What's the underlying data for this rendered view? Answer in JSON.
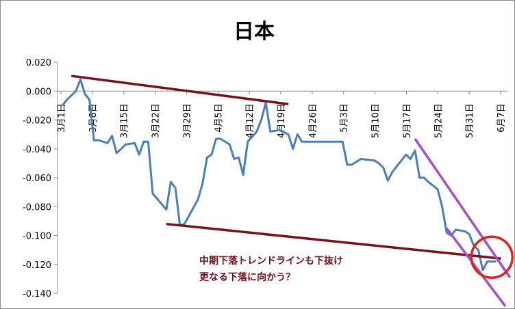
{
  "chart_data": {
    "type": "line",
    "title": "日本",
    "xlabel": "",
    "ylabel": "",
    "ylim": [
      -0.14,
      0.02
    ],
    "yticks": [
      "0.020",
      "0.000",
      "-0.020",
      "-0.040",
      "-0.060",
      "-0.080",
      "-0.100",
      "-0.120",
      "-0.140"
    ],
    "grid": false,
    "x_tick_labels": [
      "3月1日",
      "3月8日",
      "3月15日",
      "3月22日",
      "3月29日",
      "4月5日",
      "4月12日",
      "4月19日",
      "4月26日",
      "5月3日",
      "5月10日",
      "5月17日",
      "5月24日",
      "5月31日",
      "6月7日"
    ],
    "series": [
      {
        "color": "#4a7ebb",
        "points": [
          [
            0,
            -0.01
          ],
          [
            1,
            -0.006
          ],
          [
            3,
            0.0
          ],
          [
            4,
            0.008
          ],
          [
            5,
            -0.002
          ],
          [
            6,
            -0.006
          ],
          [
            7,
            -0.034
          ],
          [
            8,
            -0.034
          ],
          [
            10,
            -0.036
          ],
          [
            11,
            -0.031
          ],
          [
            12,
            -0.043
          ],
          [
            14,
            -0.037
          ],
          [
            16,
            -0.036
          ],
          [
            17,
            -0.044
          ],
          [
            18,
            -0.035
          ],
          [
            19,
            -0.035
          ],
          [
            20,
            -0.071
          ],
          [
            23,
            -0.082
          ],
          [
            24,
            -0.063
          ],
          [
            25,
            -0.067
          ],
          [
            26,
            -0.093
          ],
          [
            27,
            -0.092
          ],
          [
            30,
            -0.075
          ],
          [
            31,
            -0.064
          ],
          [
            32,
            -0.046
          ],
          [
            33,
            -0.044
          ],
          [
            34,
            -0.033
          ],
          [
            35,
            -0.033
          ],
          [
            37,
            -0.037
          ],
          [
            38,
            -0.047
          ],
          [
            39,
            -0.046
          ],
          [
            40,
            -0.058
          ],
          [
            41,
            -0.035
          ],
          [
            43,
            -0.028
          ],
          [
            44,
            -0.02
          ],
          [
            45,
            -0.008
          ],
          [
            46,
            -0.028
          ],
          [
            48,
            -0.027
          ],
          [
            50,
            -0.03
          ],
          [
            51,
            -0.04
          ],
          [
            52,
            -0.03
          ],
          [
            53,
            -0.035
          ],
          [
            55,
            -0.035
          ],
          [
            59,
            -0.035
          ],
          [
            62,
            -0.035
          ],
          [
            63,
            -0.051
          ],
          [
            64,
            -0.051
          ],
          [
            66,
            -0.047
          ],
          [
            69,
            -0.048
          ],
          [
            70,
            -0.05
          ],
          [
            71,
            -0.053
          ],
          [
            72,
            -0.062
          ],
          [
            73,
            -0.056
          ],
          [
            76,
            -0.044
          ],
          [
            77,
            -0.047
          ],
          [
            78,
            -0.041
          ],
          [
            79,
            -0.06
          ],
          [
            80,
            -0.06
          ],
          [
            81,
            -0.063
          ],
          [
            83,
            -0.068
          ],
          [
            84,
            -0.08
          ],
          [
            85,
            -0.098
          ],
          [
            86,
            -0.1
          ],
          [
            87,
            -0.096
          ],
          [
            89,
            -0.097
          ],
          [
            90,
            -0.099
          ],
          [
            91,
            -0.107
          ],
          [
            92,
            -0.11
          ],
          [
            93,
            -0.124
          ],
          [
            94,
            -0.118
          ],
          [
            96,
            -0.118
          ]
        ]
      }
    ],
    "trend_lines": [
      {
        "color": "#7b0f1a",
        "from": [
          2,
          0.0105
        ],
        "to": [
          50,
          -0.009
        ]
      },
      {
        "color": "#7b0f1a",
        "from": [
          23,
          -0.092
        ],
        "to": [
          97,
          -0.116
        ]
      },
      {
        "color": "#a64ec2",
        "from": [
          78,
          -0.033
        ],
        "to": [
          99,
          -0.129
        ]
      },
      {
        "color": "#a64ec2",
        "from": [
          85,
          -0.095
        ],
        "to": [
          98,
          -0.149
        ]
      }
    ],
    "annotation": {
      "lines": [
        "中期下落トレンドラインも下抜け",
        "更なる下落に向かう？"
      ],
      "color": "#7b0f1a"
    },
    "highlight_circle": {
      "color": "#e02020",
      "center": [
        95,
        -0.115
      ]
    }
  }
}
